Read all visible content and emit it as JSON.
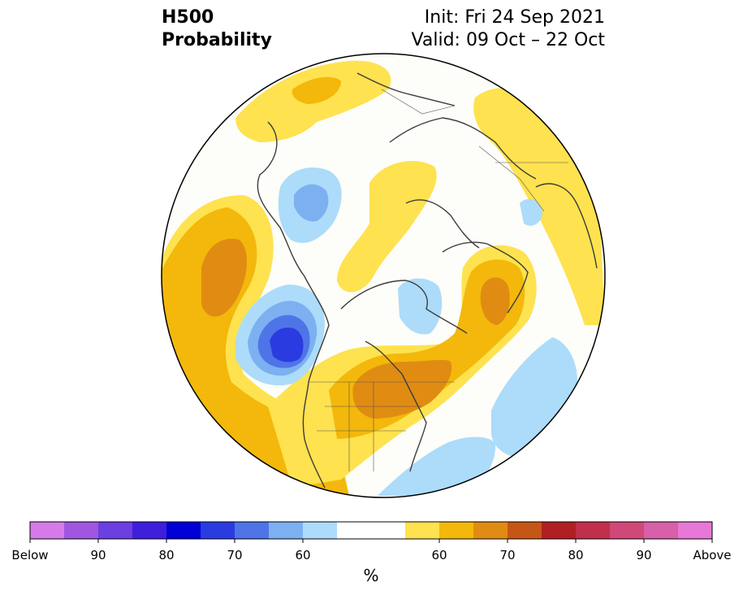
{
  "header": {
    "variable": "H500",
    "product": "Probability",
    "init": "Init: Fri 24 Sep 2021",
    "valid": "Valid: 09 Oct – 22 Oct"
  },
  "colorbar": {
    "below_colors": [
      "#d57be9",
      "#a056e0",
      "#6c3fe0",
      "#3f1fdc",
      "#0000d6",
      "#2a3ce0",
      "#4f74e8",
      "#7cb0f0",
      "#acdcfa"
    ],
    "neutral_color": "#ffffff",
    "above_colors": [
      "#fee24f",
      "#f3b80b",
      "#e08c13",
      "#c65617",
      "#b01f23",
      "#c0304a",
      "#d04878",
      "#d860a8",
      "#e878d8"
    ],
    "labels": [
      "Below",
      "90",
      "80",
      "70",
      "60",
      "60",
      "70",
      "80",
      "90",
      "Above"
    ],
    "units": "%"
  },
  "map": {
    "projection": "polar stereographic (north pole)",
    "levels": {
      "above_60": "#fee24f",
      "above_65": "#f3b80b",
      "above_70": "#e08c13",
      "below_60": "#acdcfa",
      "below_65": "#7cb0f0",
      "below_70": "#4f74e8",
      "below_75": "#2a3ce0"
    }
  }
}
